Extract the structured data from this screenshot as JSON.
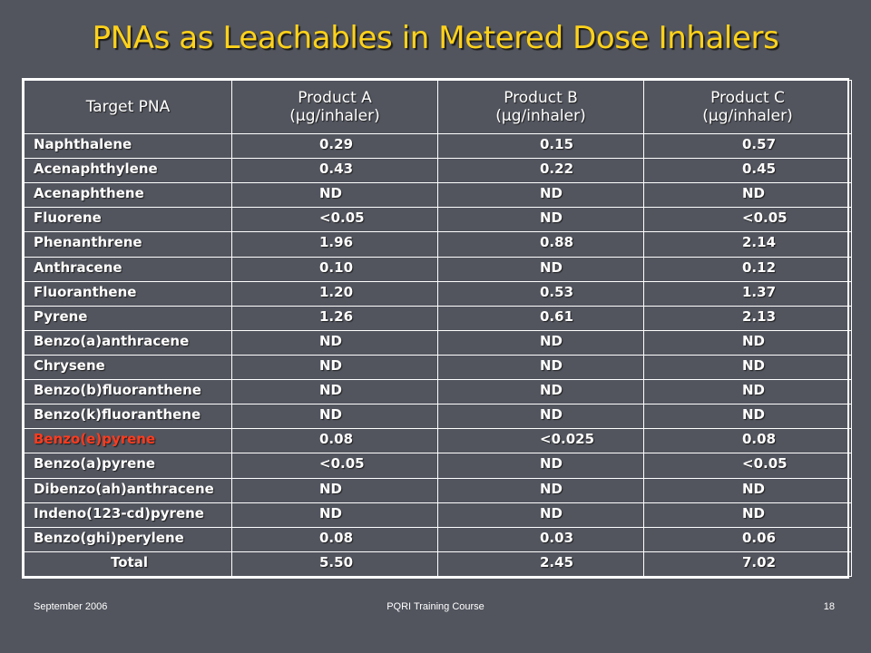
{
  "slide": {
    "title": "PNAs as Leachables in Metered Dose Inhalers"
  },
  "table": {
    "headers": [
      {
        "line1": "Target PNA",
        "line2": ""
      },
      {
        "line1": "Product A",
        "line2": "(µg/inhaler)"
      },
      {
        "line1": "Product B",
        "line2": "(µg/inhaler)"
      },
      {
        "line1": "Product C",
        "line2": "(µg/inhaler)"
      }
    ],
    "rows": [
      {
        "pna": "Naphthalene",
        "a": "0.29",
        "b": "0.15",
        "c": "0.57"
      },
      {
        "pna": "Acenaphthylene",
        "a": "0.43",
        "b": "0.22",
        "c": "0.45"
      },
      {
        "pna": "Acenaphthene",
        "a": "ND",
        "b": "ND",
        "c": "ND"
      },
      {
        "pna": "Fluorene",
        "a": "<0.05",
        "b": "ND",
        "c": "<0.05"
      },
      {
        "pna": "Phenanthrene",
        "a": "1.96",
        "b": "0.88",
        "c": "2.14"
      },
      {
        "pna": "Anthracene",
        "a": "0.10",
        "b": "ND",
        "c": "0.12"
      },
      {
        "pna": "Fluoranthene",
        "a": "1.20",
        "b": "0.53",
        "c": "1.37"
      },
      {
        "pna": "Pyrene",
        "a": "1.26",
        "b": "0.61",
        "c": "2.13"
      },
      {
        "pna": "Benzo(a)anthracene",
        "a": "ND",
        "b": "ND",
        "c": "ND"
      },
      {
        "pna": "Chrysene",
        "a": "ND",
        "b": "ND",
        "c": "ND"
      },
      {
        "pna": "Benzo(b)fluoranthene",
        "a": "ND",
        "b": "ND",
        "c": "ND"
      },
      {
        "pna": "Benzo(k)fluoranthene",
        "a": "ND",
        "b": "ND",
        "c": "ND"
      },
      {
        "pna": "Benzo(e)pyrene",
        "a": "0.08",
        "b": "<0.025",
        "c": "0.08",
        "highlight": "#ff3b1f"
      },
      {
        "pna": "Benzo(a)pyrene",
        "a": "<0.05",
        "b": "ND",
        "c": "<0.05"
      },
      {
        "pna": "Dibenzo(ah)anthracene",
        "a": "ND",
        "b": "ND",
        "c": "ND"
      },
      {
        "pna": "Indeno(123-cd)pyrene",
        "a": "ND",
        "b": "ND",
        "c": "ND"
      },
      {
        "pna": "Benzo(ghi)perylene",
        "a": "0.08",
        "b": "0.03",
        "c": "0.06"
      },
      {
        "pna": "Total",
        "a": "5.50",
        "b": "2.45",
        "c": "7.02",
        "is_total": true
      }
    ]
  },
  "footer": {
    "date": "September 2006",
    "course": "PQRI Training Course",
    "page": "18"
  },
  "colors": {
    "background": "#52555e",
    "title": "#ffd21a",
    "text": "#ffffff",
    "highlight": "#ff3b1f"
  }
}
